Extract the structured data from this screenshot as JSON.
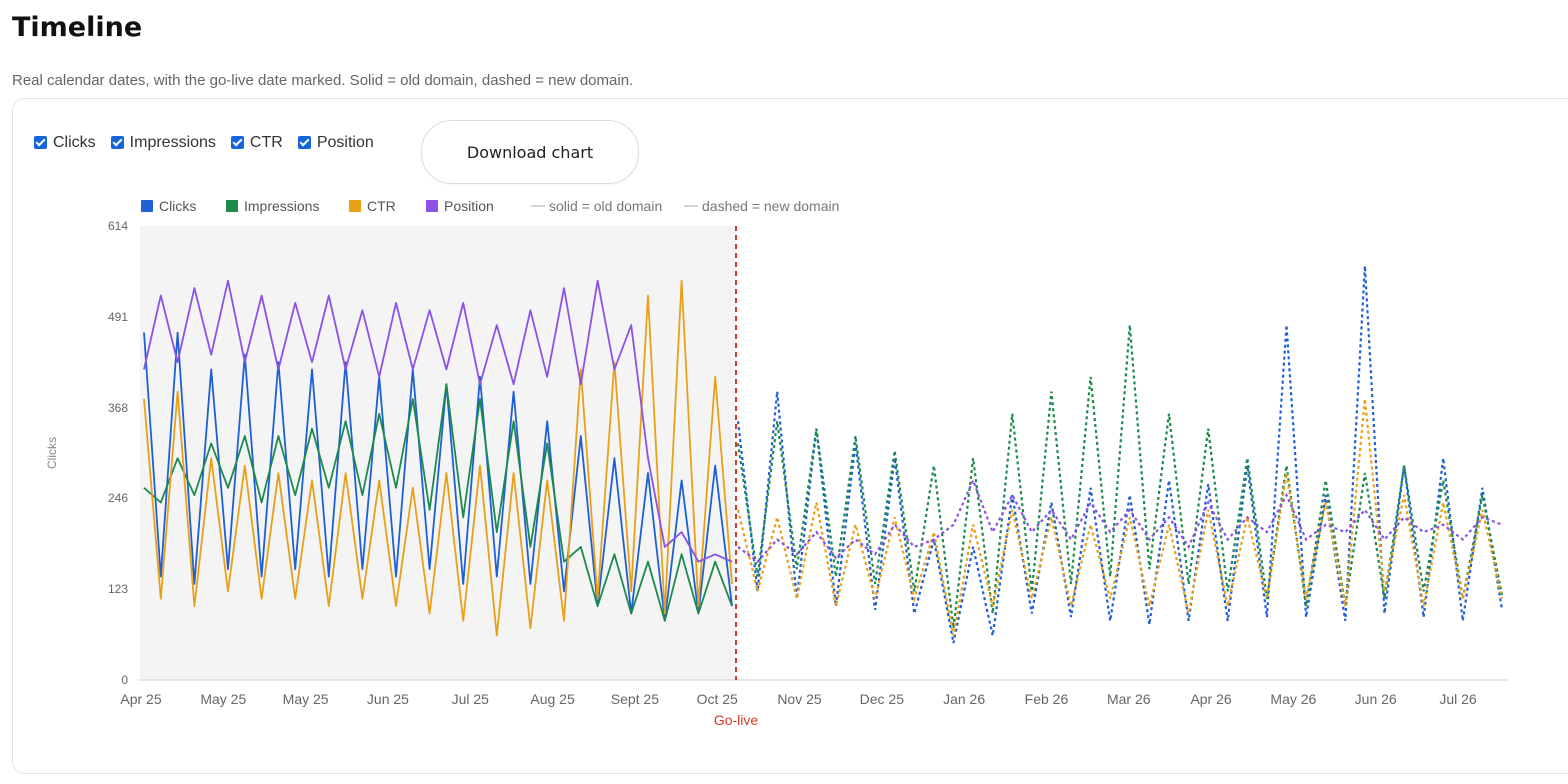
{
  "page": {
    "title": "Timeline",
    "subtitle": "Real calendar dates, with the go-live date marked. Solid = old domain, dashed = new domain."
  },
  "controls": {
    "toggles": [
      {
        "label": "Clicks",
        "checked": true
      },
      {
        "label": "Impressions",
        "checked": true
      },
      {
        "label": "CTR",
        "checked": true
      },
      {
        "label": "Position",
        "checked": true
      }
    ],
    "download_label": "Download chart"
  },
  "colors": {
    "clicks": "#1f5fd6",
    "impressions": "#1b8a4c",
    "ctr": "#e8a019",
    "position": "#8c52e6",
    "golive": "#d23a2e",
    "shade": "#f4f4f4"
  },
  "chart_data": {
    "type": "line",
    "ylabel": "Clicks",
    "ylim": [
      0,
      614
    ],
    "yticks": [
      0,
      123,
      246,
      368,
      491,
      614
    ],
    "x_tick_labels": [
      "Apr 25",
      "May 25",
      "May 25",
      "Jun 25",
      "Jul 25",
      "Aug 25",
      "Sept 25",
      "Oct 25",
      "Nov 25",
      "Dec 25",
      "Jan 26",
      "Feb 26",
      "Mar 26",
      "Apr 26",
      "May 26",
      "Jun 26",
      "Jul 26"
    ],
    "golive_label": "Go-live",
    "golive_date": "Oct 25",
    "legend": {
      "series": [
        "Clicks",
        "Impressions",
        "CTR",
        "Position"
      ],
      "style_notes": [
        "solid = old domain",
        "dashed = new domain"
      ]
    },
    "series": [
      {
        "name": "Clicks",
        "old_domain": [
          470,
          140,
          470,
          130,
          420,
          150,
          440,
          140,
          430,
          150,
          420,
          140,
          430,
          150,
          410,
          140,
          420,
          150,
          400,
          130,
          410,
          140,
          390,
          130,
          350,
          120,
          330,
          100,
          300,
          90,
          280,
          80,
          270,
          90,
          290,
          100
        ],
        "new_domain": [
          350,
          120,
          390,
          110,
          340,
          100,
          320,
          95,
          300,
          90,
          190,
          50,
          180,
          60,
          250,
          90,
          240,
          85,
          260,
          80,
          250,
          75,
          270,
          80,
          265,
          80,
          290,
          85,
          480,
          85,
          250,
          80,
          560,
          90,
          290,
          85,
          300,
          80,
          260,
          95
        ]
      },
      {
        "name": "Impressions",
        "old_domain": [
          260,
          240,
          300,
          250,
          320,
          260,
          330,
          240,
          330,
          250,
          340,
          260,
          350,
          250,
          360,
          260,
          380,
          230,
          400,
          220,
          380,
          200,
          350,
          180,
          320,
          160,
          180,
          100,
          170,
          90,
          160,
          80,
          170,
          90,
          160,
          100
        ],
        "new_domain": [
          320,
          140,
          350,
          150,
          340,
          140,
          330,
          130,
          310,
          120,
          290,
          70,
          300,
          90,
          360,
          120,
          390,
          130,
          410,
          140,
          480,
          150,
          360,
          130,
          340,
          120,
          300,
          110,
          290,
          100,
          270,
          100,
          280,
          110,
          290,
          120,
          270,
          110,
          250,
          115
        ]
      },
      {
        "name": "CTR",
        "old_domain": [
          380,
          110,
          390,
          100,
          300,
          120,
          290,
          110,
          280,
          110,
          270,
          100,
          280,
          110,
          270,
          100,
          260,
          90,
          280,
          80,
          290,
          60,
          280,
          70,
          270,
          80,
          420,
          110,
          430,
          120,
          520,
          90,
          540,
          100,
          410,
          130
        ],
        "new_domain": [
          230,
          120,
          220,
          110,
          240,
          100,
          210,
          110,
          220,
          110,
          200,
          60,
          210,
          100,
          230,
          110,
          220,
          100,
          210,
          110,
          220,
          100,
          210,
          90,
          230,
          100,
          220,
          110,
          280,
          110,
          240,
          100,
          380,
          120,
          250,
          100,
          240,
          110,
          230,
          110
        ]
      },
      {
        "name": "Position",
        "old_domain": [
          420,
          520,
          430,
          530,
          440,
          540,
          430,
          520,
          420,
          510,
          430,
          520,
          420,
          500,
          410,
          510,
          420,
          500,
          420,
          510,
          400,
          480,
          400,
          500,
          410,
          530,
          400,
          540,
          420,
          480,
          300,
          180,
          200,
          160,
          170,
          160
        ],
        "new_domain": [
          180,
          160,
          190,
          170,
          200,
          165,
          190,
          170,
          210,
          180,
          190,
          210,
          270,
          200,
          250,
          200,
          230,
          190,
          240,
          200,
          230,
          190,
          220,
          180,
          240,
          190,
          220,
          200,
          250,
          190,
          210,
          200,
          230,
          190,
          220,
          200,
          210,
          190,
          220,
          210
        ]
      }
    ]
  }
}
